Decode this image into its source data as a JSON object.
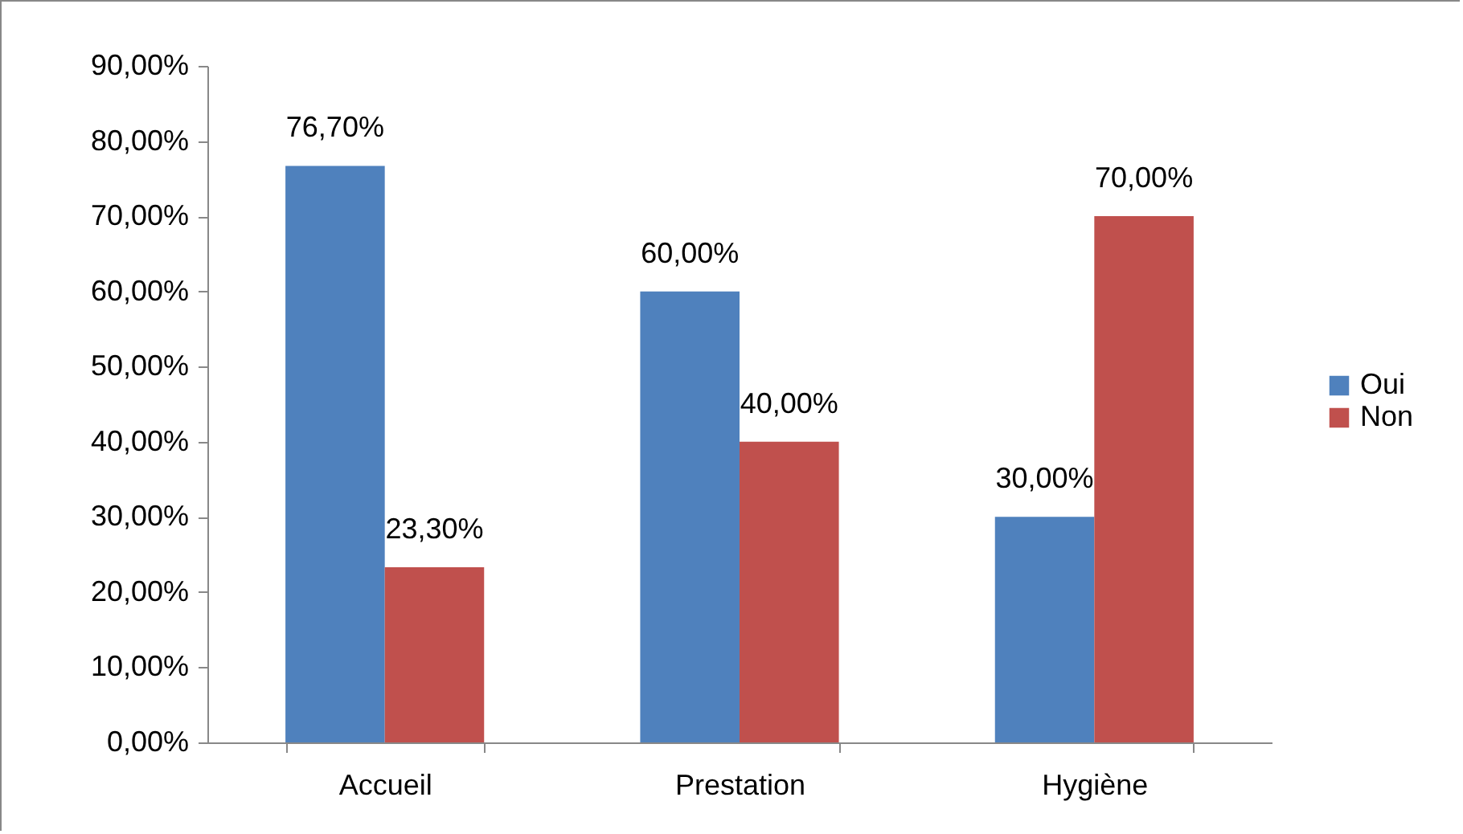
{
  "chart_data": {
    "type": "bar",
    "categories": [
      "Accueil",
      "Prestation",
      "Hygiène"
    ],
    "series": [
      {
        "name": "Oui",
        "color": "#4f81bd",
        "values": [
          76.7,
          60,
          30
        ],
        "value_labels": [
          "76,70%",
          "60,00%",
          "30,00%"
        ]
      },
      {
        "name": "Non",
        "color": "#c0504d",
        "values": [
          23.3,
          40,
          70
        ],
        "value_labels": [
          "23,30%",
          "40,00%",
          "70,00%"
        ]
      }
    ],
    "ylim": [
      0,
      90
    ],
    "yticks": [
      {
        "value": 0,
        "label": "0,00%"
      },
      {
        "value": 10,
        "label": "10,00%"
      },
      {
        "value": 20,
        "label": "20,00%"
      },
      {
        "value": 30,
        "label": "30,00%"
      },
      {
        "value": 40,
        "label": "40,00%"
      },
      {
        "value": 50,
        "label": "50,00%"
      },
      {
        "value": 60,
        "label": "60,00%"
      },
      {
        "value": 70,
        "label": "70,00%"
      },
      {
        "value": 80,
        "label": "80,00%"
      },
      {
        "value": 90,
        "label": "90,00%"
      }
    ],
    "legend": "right"
  }
}
